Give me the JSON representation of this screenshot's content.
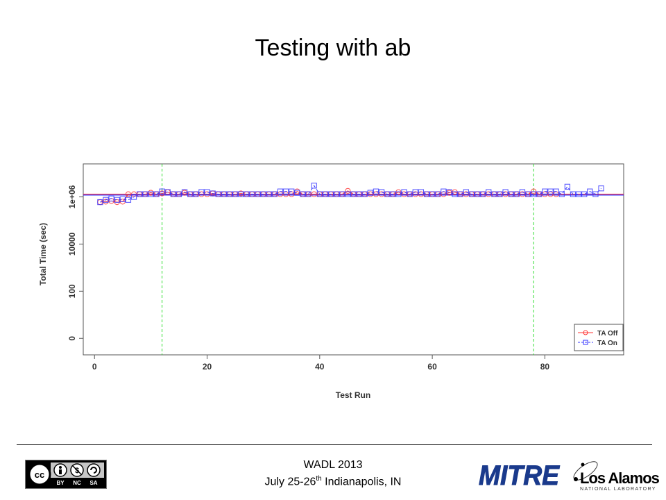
{
  "slide": {
    "title": "Testing with ab",
    "footer": {
      "event": "WADL 2013",
      "date_prefix": "July 25-26",
      "date_sup": "th",
      "date_suffix": " Indianapolis, IN"
    },
    "logos": {
      "cc_badge": {
        "labels": [
          "cc",
          "BY",
          "NC",
          "SA"
        ]
      },
      "mitre": "MITRE",
      "lanl": {
        "name": "Los Alamos",
        "sub": "NATIONAL LABORATORY"
      }
    }
  },
  "chart_data": {
    "type": "line",
    "xlabel": "Test Run",
    "ylabel": "Total Time (sec)",
    "x_ticks": [
      0,
      20,
      40,
      60,
      80
    ],
    "y_scale": "log",
    "y_ticks": [
      {
        "value": 0,
        "label": "0"
      },
      {
        "value": 100,
        "label": "100"
      },
      {
        "value": 10000,
        "label": "10000"
      },
      {
        "value": 1000000,
        "label": "1e+06"
      }
    ],
    "xlim": [
      -2,
      94
    ],
    "ylog10_lim": [
      -0.7,
      7.4
    ],
    "vlines": [
      12,
      78
    ],
    "hlines": [
      {
        "series": "TA Off",
        "value": 1300000
      },
      {
        "series": "TA On",
        "value": 1200000
      }
    ],
    "legend_position": "bottom-right",
    "series": [
      {
        "name": "TA Off",
        "color": "#ff3333",
        "marker": "circle",
        "line_style": "solid",
        "x": [
          1,
          2,
          3,
          4,
          5,
          6,
          7,
          8,
          9,
          10,
          11,
          12,
          13,
          14,
          15,
          16,
          17,
          18,
          19,
          20,
          21,
          22,
          23,
          24,
          25,
          26,
          27,
          28,
          29,
          30,
          31,
          32,
          33,
          34,
          35,
          36,
          37,
          38,
          39,
          40,
          41,
          42,
          43,
          44,
          45,
          46,
          47,
          48,
          49,
          50,
          51,
          52,
          53,
          54,
          55,
          56,
          57,
          58,
          59,
          60,
          61,
          62,
          63,
          64,
          65,
          66,
          67,
          68,
          69,
          70,
          71,
          72,
          73,
          74,
          75,
          76,
          77,
          78,
          79,
          80,
          81,
          82
        ],
        "y": [
          600000,
          630000,
          670000,
          600000,
          630000,
          1300000,
          1300000,
          1300000,
          1300000,
          1500000,
          1300000,
          1400000,
          1600000,
          1300000,
          1300000,
          1500000,
          1300000,
          1300000,
          1300000,
          1300000,
          1400000,
          1300000,
          1300000,
          1300000,
          1300000,
          1400000,
          1300000,
          1300000,
          1300000,
          1300000,
          1300000,
          1300000,
          1300000,
          1300000,
          1300000,
          1700000,
          1300000,
          1300000,
          1300000,
          1300000,
          1300000,
          1300000,
          1300000,
          1300000,
          1800000,
          1300000,
          1300000,
          1300000,
          1300000,
          1300000,
          1300000,
          1300000,
          1300000,
          1600000,
          1300000,
          1300000,
          1300000,
          1300000,
          1300000,
          1300000,
          1300000,
          1300000,
          1500000,
          1600000,
          1300000,
          1300000,
          1300000,
          1300000,
          1300000,
          1300000,
          1300000,
          1300000,
          1300000,
          1300000,
          1300000,
          1300000,
          1300000,
          1700000,
          1300000,
          1300000,
          1300000,
          1300000
        ]
      },
      {
        "name": "TA On",
        "color": "#3333ff",
        "marker": "square",
        "line_style": "dashed",
        "x": [
          1,
          2,
          3,
          4,
          5,
          6,
          7,
          8,
          9,
          10,
          11,
          12,
          13,
          14,
          15,
          16,
          17,
          18,
          19,
          20,
          21,
          22,
          23,
          24,
          25,
          26,
          27,
          28,
          29,
          30,
          31,
          32,
          33,
          34,
          35,
          36,
          37,
          38,
          39,
          40,
          41,
          42,
          43,
          44,
          45,
          46,
          47,
          48,
          49,
          50,
          51,
          52,
          53,
          54,
          55,
          56,
          57,
          58,
          59,
          60,
          61,
          62,
          63,
          64,
          65,
          66,
          67,
          68,
          69,
          70,
          71,
          72,
          73,
          74,
          75,
          76,
          77,
          78,
          79,
          80,
          81,
          82,
          83,
          84,
          85,
          86,
          87,
          88,
          89,
          90
        ],
        "y": [
          600000,
          750000,
          850000,
          750000,
          800000,
          750000,
          1000000,
          1300000,
          1300000,
          1300000,
          1300000,
          1700000,
          1600000,
          1300000,
          1300000,
          1600000,
          1300000,
          1300000,
          1600000,
          1600000,
          1400000,
          1300000,
          1300000,
          1300000,
          1300000,
          1300000,
          1300000,
          1300000,
          1300000,
          1300000,
          1300000,
          1300000,
          1700000,
          1700000,
          1700000,
          1500000,
          1300000,
          1300000,
          3000000,
          1300000,
          1300000,
          1300000,
          1300000,
          1300000,
          1300000,
          1300000,
          1300000,
          1300000,
          1500000,
          1700000,
          1600000,
          1300000,
          1300000,
          1300000,
          1600000,
          1300000,
          1600000,
          1600000,
          1300000,
          1300000,
          1300000,
          1700000,
          1600000,
          1300000,
          1300000,
          1600000,
          1300000,
          1300000,
          1300000,
          1600000,
          1300000,
          1300000,
          1600000,
          1300000,
          1300000,
          1600000,
          1300000,
          1300000,
          1300000,
          1700000,
          1700000,
          1700000,
          1300000,
          2700000,
          1300000,
          1300000,
          1300000,
          1700000,
          1300000,
          2300000
        ]
      }
    ]
  }
}
